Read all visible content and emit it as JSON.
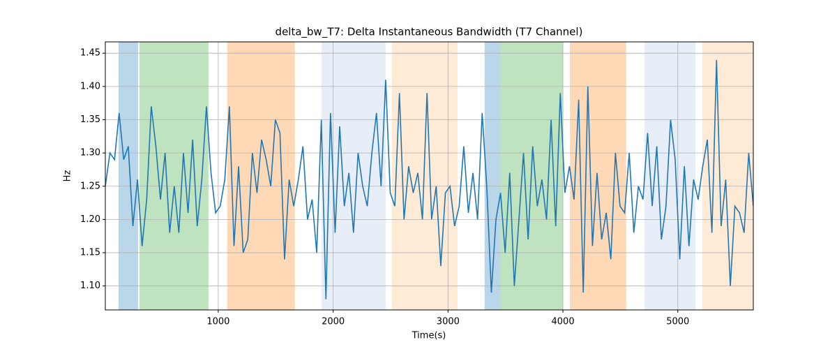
{
  "chart_data": {
    "type": "line",
    "title": "delta_bw_T7: Delta Instantaneous Bandwidth (T7 Channel)",
    "xlabel": "Time(s)",
    "ylabel": "Hz",
    "xlim": [
      17,
      5657
    ],
    "ylim": [
      1.064,
      1.467
    ],
    "xticks": [
      1000,
      2000,
      3000,
      4000,
      5000
    ],
    "yticks": [
      {
        "value": 1.1,
        "label": "1.10"
      },
      1.15,
      {
        "value": 1.2,
        "label": "1.20"
      },
      1.25,
      {
        "value": 1.3,
        "label": "1.30"
      },
      1.35,
      {
        "value": 1.4,
        "label": "1.40"
      },
      1.45
    ],
    "grid": true,
    "spans": [
      {
        "start": 132,
        "end": 302,
        "color": "#1f77b4"
      },
      {
        "start": 314,
        "end": 915,
        "color": "#2ca02c"
      },
      {
        "start": 1078,
        "end": 1667,
        "color": "#ff7f0e"
      },
      {
        "start": 1898,
        "end": 2457,
        "color": "#aec7e8"
      },
      {
        "start": 2511,
        "end": 3082,
        "color": "#ffbb78"
      },
      {
        "start": 3318,
        "end": 3458,
        "color": "#1f77b4"
      },
      {
        "start": 3458,
        "end": 4000,
        "color": "#2ca02c"
      },
      {
        "start": 4061,
        "end": 4551,
        "color": "#ff7f0e"
      },
      {
        "start": 4709,
        "end": 5153,
        "color": "#aec7e8"
      },
      {
        "start": 5213,
        "end": 5655,
        "color": "#ffbb78"
      }
    ],
    "x": [
      17,
      57,
      97,
      137,
      177,
      217,
      257,
      297,
      337,
      377,
      417,
      457,
      497,
      537,
      577,
      617,
      657,
      697,
      737,
      777,
      817,
      857,
      897,
      937,
      977,
      1017,
      1057,
      1097,
      1137,
      1177,
      1217,
      1257,
      1297,
      1337,
      1377,
      1417,
      1457,
      1497,
      1537,
      1577,
      1617,
      1657,
      1697,
      1737,
      1777,
      1817,
      1857,
      1897,
      1937,
      1977,
      2017,
      2057,
      2097,
      2137,
      2177,
      2217,
      2257,
      2297,
      2337,
      2377,
      2417,
      2457,
      2497,
      2537,
      2577,
      2617,
      2657,
      2697,
      2737,
      2777,
      2817,
      2857,
      2897,
      2937,
      2977,
      3017,
      3057,
      3097,
      3137,
      3177,
      3217,
      3257,
      3297,
      3337,
      3377,
      3417,
      3457,
      3497,
      3537,
      3577,
      3617,
      3657,
      3697,
      3737,
      3777,
      3817,
      3857,
      3897,
      3937,
      3977,
      4017,
      4057,
      4097,
      4137,
      4177,
      4217,
      4257,
      4297,
      4337,
      4377,
      4417,
      4457,
      4497,
      4537,
      4577,
      4617,
      4657,
      4697,
      4737,
      4777,
      4817,
      4857,
      4897,
      4937,
      4977,
      5017,
      5057,
      5097,
      5137,
      5177,
      5217,
      5257,
      5297,
      5337,
      5377,
      5417,
      5457,
      5497,
      5537,
      5577,
      5617,
      5657
    ],
    "series": [
      {
        "color": "#1f77b4",
        "values": [
          1.25,
          1.3,
          1.29,
          1.36,
          1.29,
          1.31,
          1.19,
          1.26,
          1.16,
          1.23,
          1.37,
          1.31,
          1.23,
          1.3,
          1.18,
          1.25,
          1.18,
          1.3,
          1.21,
          1.32,
          1.19,
          1.26,
          1.37,
          1.27,
          1.21,
          1.22,
          1.26,
          1.37,
          1.16,
          1.28,
          1.15,
          1.17,
          1.3,
          1.24,
          1.32,
          1.29,
          1.25,
          1.35,
          1.33,
          1.14,
          1.26,
          1.22,
          1.26,
          1.31,
          1.2,
          1.23,
          1.15,
          1.35,
          1.08,
          1.36,
          1.18,
          1.34,
          1.22,
          1.27,
          1.18,
          1.3,
          1.25,
          1.22,
          1.3,
          1.36,
          1.25,
          1.41,
          1.24,
          1.22,
          1.39,
          1.2,
          1.28,
          1.24,
          1.27,
          1.2,
          1.39,
          1.2,
          1.25,
          1.13,
          1.24,
          1.25,
          1.19,
          1.22,
          1.31,
          1.21,
          1.27,
          1.2,
          1.36,
          1.25,
          1.09,
          1.2,
          1.24,
          1.15,
          1.27,
          1.1,
          1.2,
          1.3,
          1.17,
          1.31,
          1.22,
          1.26,
          1.2,
          1.35,
          1.19,
          1.39,
          1.24,
          1.28,
          1.23,
          1.38,
          1.09,
          1.4,
          1.16,
          1.27,
          1.17,
          1.21,
          1.14,
          1.3,
          1.22,
          1.21,
          1.3,
          1.18,
          1.25,
          1.23,
          1.33,
          1.22,
          1.31,
          1.17,
          1.22,
          1.35,
          1.29,
          1.14,
          1.28,
          1.16,
          1.26,
          1.23,
          1.28,
          1.32,
          1.18,
          1.44,
          1.19,
          1.26,
          1.1,
          1.22,
          1.21,
          1.18,
          1.3,
          1.22
        ]
      }
    ]
  }
}
